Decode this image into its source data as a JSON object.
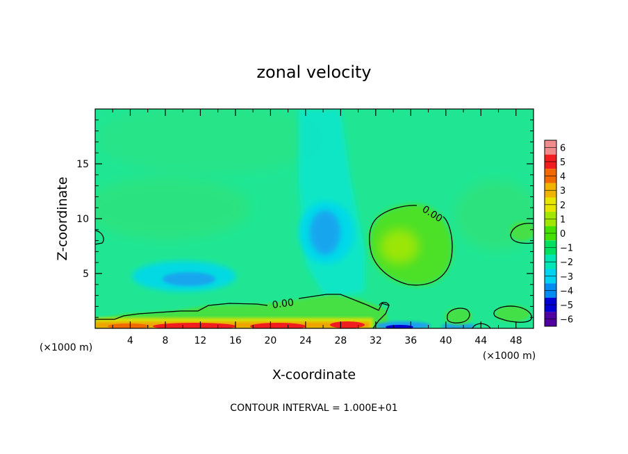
{
  "chart_data": {
    "type": "heatmap",
    "title": "zonal velocity",
    "xlabel": "X-coordinate",
    "ylabel": "Z-coordinate",
    "x_unit_left": "(×1000 m)",
    "x_unit_right": "(×1000 m)",
    "footer": "CONTOUR INTERVAL = 1.000E+01",
    "xlim": [
      0,
      50
    ],
    "ylim": [
      0,
      20
    ],
    "x_ticks": [
      "4",
      "8",
      "12",
      "16",
      "20",
      "24",
      "28",
      "32",
      "36",
      "40",
      "44",
      "48"
    ],
    "y_ticks": [
      "5",
      "10",
      "15"
    ],
    "contour_label": "0.00",
    "colorbar": {
      "labels": [
        "6",
        "5",
        "4",
        "3",
        "2",
        "1",
        "0",
        "−1",
        "−2",
        "−3",
        "−4",
        "−5",
        "−6"
      ],
      "colors": [
        "#f08c8c",
        "#f01e1e",
        "#f06a00",
        "#f0b400",
        "#e6e600",
        "#a0e600",
        "#46e000",
        "#00e060",
        "#00e6b4",
        "#00d2f0",
        "#008cf0",
        "#0000d2",
        "#5000a0"
      ]
    },
    "features": [
      {
        "name": "background",
        "value": -0.6
      },
      {
        "name": "positive-core-upper-right",
        "x": 34,
        "z": 7.5,
        "value": 1.3
      },
      {
        "name": "negative-core-upper-center",
        "x": 27,
        "z": 9,
        "value": -2.6
      },
      {
        "name": "negative-core-left",
        "x": 11,
        "z": 4.5,
        "value": -2.8
      },
      {
        "name": "surface-jet",
        "x": 15,
        "z": 0.3,
        "value": 4.5
      },
      {
        "name": "surface-negative",
        "x": 36,
        "z": 0.3,
        "value": -4.5
      }
    ]
  }
}
